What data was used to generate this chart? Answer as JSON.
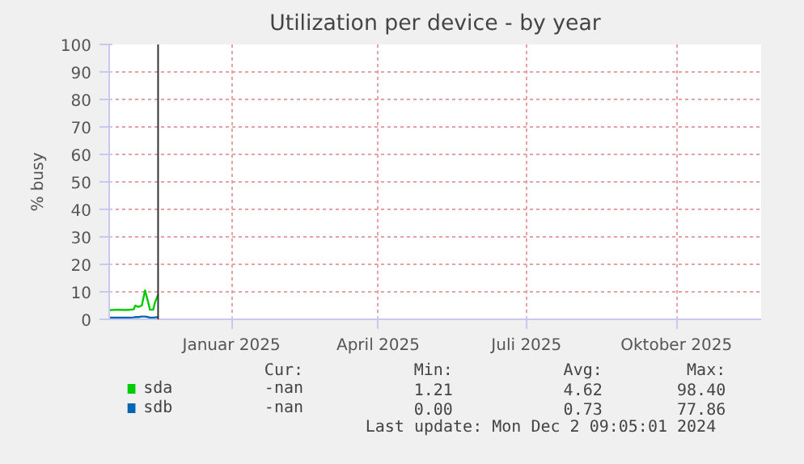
{
  "chart_data": {
    "type": "line",
    "title": "Utilization per device - by year",
    "ylabel": "% busy",
    "x": [
      "2024-11-02",
      "2024-11-07",
      "2024-11-12",
      "2024-11-17",
      "2024-11-18",
      "2024-11-20",
      "2024-11-22",
      "2024-11-24",
      "2024-11-26",
      "2024-11-27",
      "2024-11-29",
      "2024-11-30",
      "2024-12-02"
    ],
    "series": [
      {
        "name": "sda",
        "color": "#00cc00",
        "values": [
          3.3,
          3.5,
          3.4,
          3.6,
          5,
          4.5,
          5,
          10.5,
          6,
          3.5,
          3.5,
          6,
          9
        ]
      },
      {
        "name": "sdb",
        "color": "#0066b3",
        "values": [
          0.6,
          0.6,
          0.6,
          0.7,
          0.8,
          0.8,
          1.0,
          1.0,
          0.8,
          0.6,
          0.6,
          0.7,
          0.8
        ]
      }
    ],
    "xlim": [
      "2024-11-02",
      "2025-12-07"
    ],
    "xticks": [
      {
        "value": "2025-01-16",
        "label": "Januar 2025"
      },
      {
        "value": "2025-04-16",
        "label": "April 2025"
      },
      {
        "value": "2025-07-16",
        "label": "Juli 2025"
      },
      {
        "value": "2025-10-16",
        "label": "Oktober 2025"
      }
    ],
    "ylim": [
      0,
      100
    ],
    "yticks": [
      0,
      10,
      20,
      30,
      40,
      50,
      60,
      70,
      80,
      90,
      100
    ],
    "grid": true,
    "legend": "bottom",
    "marker": "none",
    "line_style": "solid",
    "ref_lines": [
      {
        "axis": "x",
        "value": "2024-12-02",
        "label": null,
        "color": "#333333"
      }
    ],
    "annotations": [
      "Cur:",
      "Min:",
      "Avg:",
      "Max:",
      "-nan",
      "1.21",
      "4.62",
      "98.40",
      "-nan",
      "0.00",
      "0.73",
      "77.86",
      "Last update: Mon Dec  2 09:05:01 2024"
    ]
  }
}
